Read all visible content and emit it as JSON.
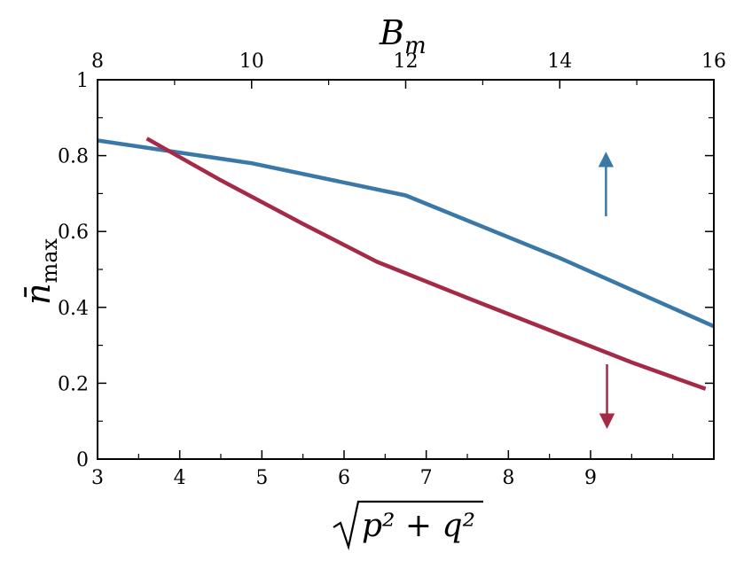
{
  "chart_data": {
    "type": "line",
    "ylabel": "n̄",
    "ylabel_sub": "max",
    "xlabel_bottom": "p² + q²",
    "xlabel_top": "B",
    "xlabel_top_sub": "m",
    "x_bottom": {
      "lim": [
        3,
        10.5
      ],
      "ticks": [
        3,
        4,
        5,
        6,
        7,
        8,
        9
      ],
      "tick_labels": [
        "3",
        "4",
        "5",
        "6",
        "7",
        "8",
        "9"
      ],
      "minor": [
        3.5,
        4.5,
        5.5,
        6.5,
        7.5,
        8.5,
        9.5,
        10
      ]
    },
    "x_top": {
      "lim": [
        8,
        16
      ],
      "ticks": [
        8,
        10,
        12,
        14,
        16
      ],
      "tick_labels": [
        "8",
        "10",
        "12",
        "14",
        "16"
      ],
      "minor": [
        9,
        11,
        13,
        15
      ]
    },
    "y": {
      "lim": [
        0,
        1
      ],
      "ticks": [
        0,
        0.2,
        0.4,
        0.6,
        0.8,
        1
      ],
      "tick_labels": [
        "0",
        "0.2",
        "0.4",
        "0.6",
        "0.8",
        "1"
      ],
      "minor": [
        0.1,
        0.3,
        0.5,
        0.7,
        0.9
      ]
    },
    "series": [
      {
        "axis": "top",
        "color": "#3a78a8",
        "x": [
          8,
          10,
          12,
          14,
          16
        ],
        "y": [
          0.84,
          0.78,
          0.695,
          0.53,
          0.35
        ]
      },
      {
        "axis": "bottom",
        "color": "#a52a47",
        "x": [
          3.6,
          4.5,
          5.5,
          6.4,
          7.5,
          8.5,
          9.5,
          10.4
        ],
        "y": [
          0.845,
          0.735,
          0.62,
          0.52,
          0.425,
          0.34,
          0.255,
          0.185
        ]
      }
    ],
    "annotations": [
      {
        "type": "arrow",
        "direction": "up",
        "color": "#3a78a8",
        "x_top": 14.6,
        "y_from": 0.64,
        "y_to": 0.79
      },
      {
        "type": "arrow",
        "direction": "down",
        "color": "#a52a47",
        "x_bottom": 9.2,
        "y_from": 0.25,
        "y_to": 0.1
      }
    ]
  }
}
